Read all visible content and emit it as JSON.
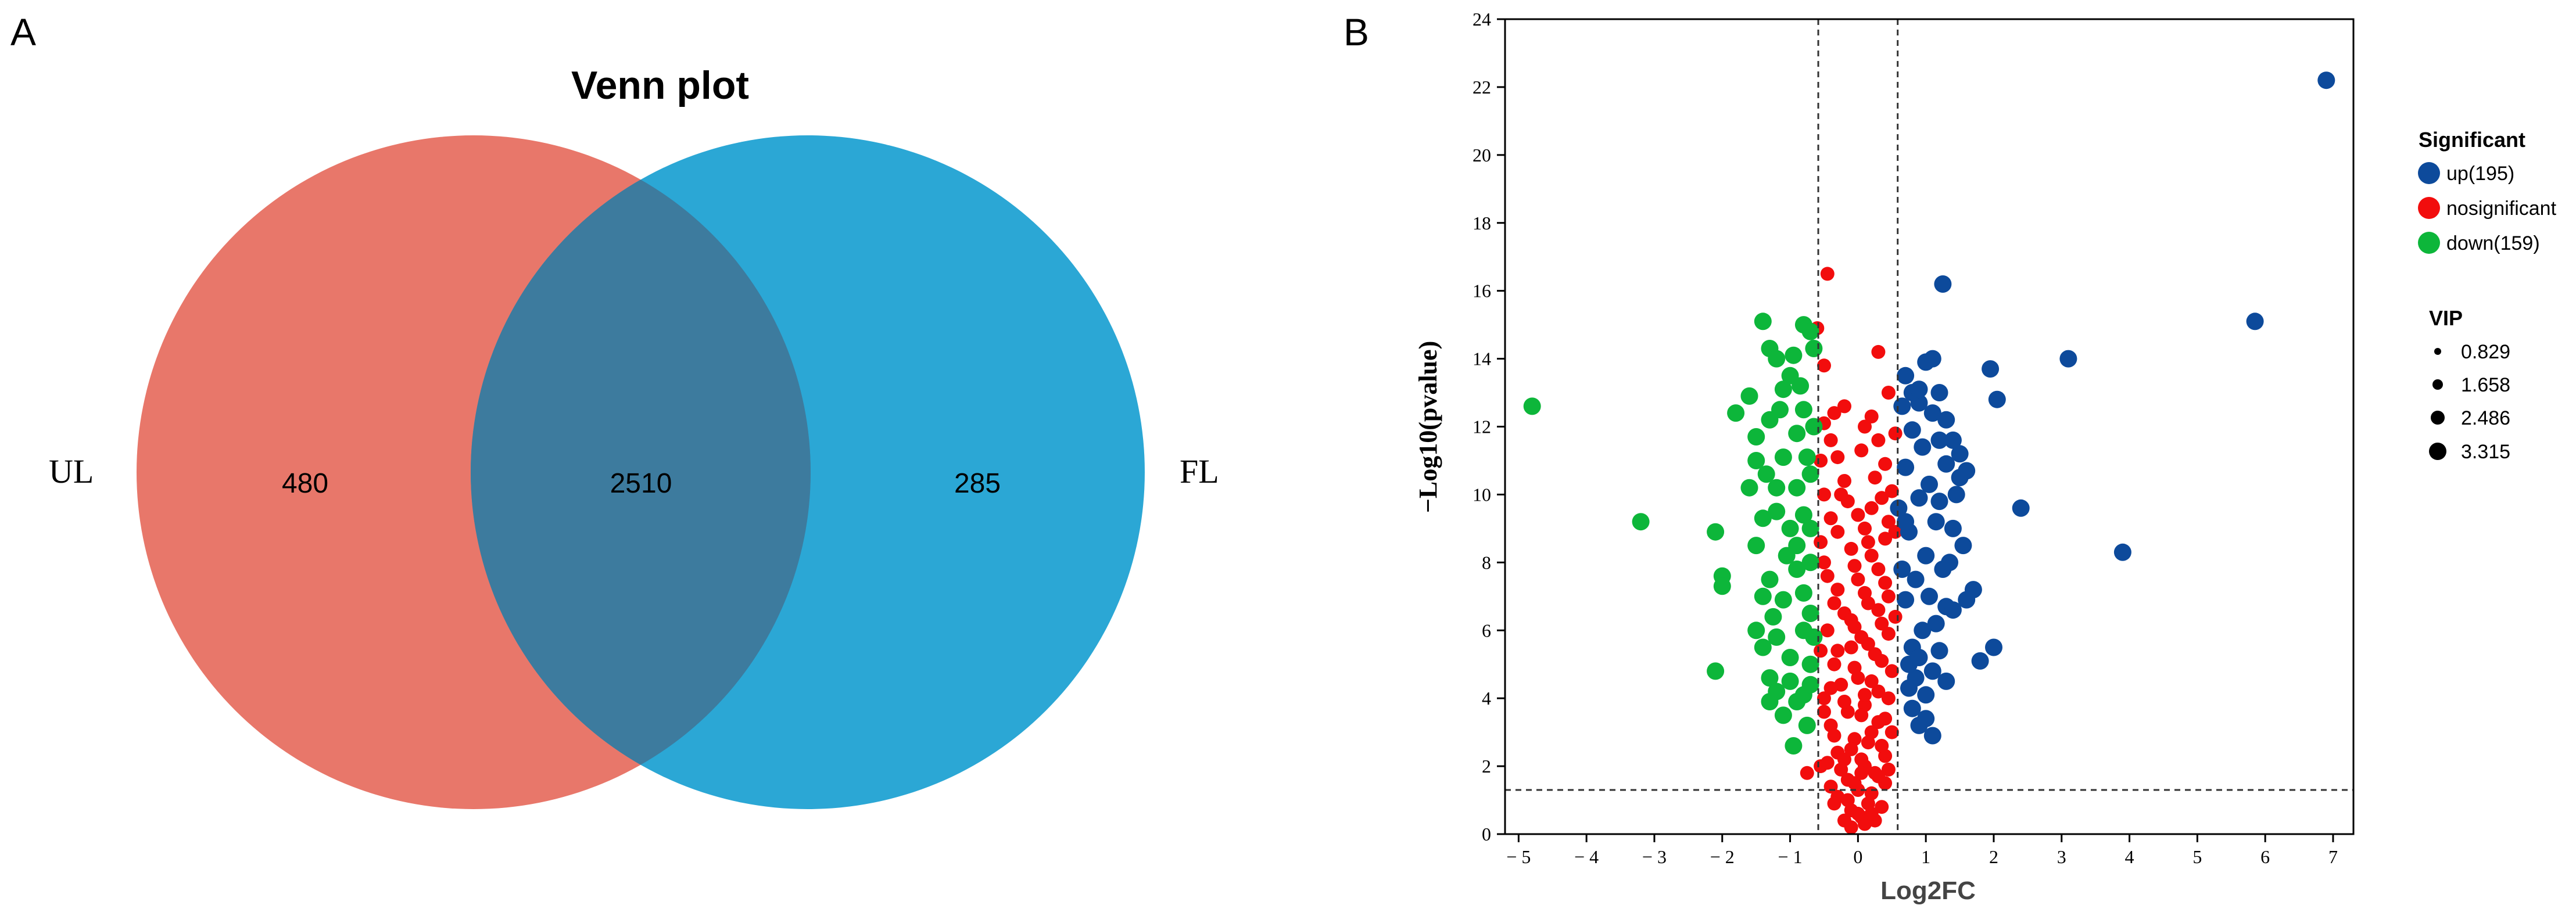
{
  "panels": {
    "a_label": "A",
    "b_label": "B"
  },
  "chart_data": [
    {
      "type": "venn",
      "title": "Venn plot",
      "sets": [
        {
          "name": "UL",
          "only": 480,
          "color": "#e8776a"
        },
        {
          "name": "FL",
          "only": 285,
          "color": "#0e9bcf"
        }
      ],
      "intersection": 2510,
      "labels": {
        "only_left": "480",
        "shared": "2510",
        "only_right": "285"
      },
      "intersection_color": "#3d7b9e"
    },
    {
      "type": "scatter",
      "subtype": "volcano",
      "xlabel": "Log2FC",
      "ylabel": "−Log10(pvalue)",
      "xlim": [
        -5.2,
        7.3
      ],
      "ylim": [
        0,
        24
      ],
      "xticks": [
        -5,
        -4,
        -3,
        -2,
        -1,
        0,
        1,
        2,
        3,
        4,
        5,
        6,
        7
      ],
      "xtick_labels": [
        "− 5",
        "− 4",
        "− 3",
        "− 2",
        "− 1",
        "0",
        "1",
        "2",
        "3",
        "4",
        "5",
        "6",
        "7"
      ],
      "yticks": [
        0,
        2,
        4,
        6,
        8,
        10,
        12,
        14,
        16,
        18,
        20,
        22,
        24
      ],
      "ytick_labels": [
        "0",
        "2",
        "4",
        "6",
        "8",
        "10",
        "12",
        "14",
        "16",
        "18",
        "20",
        "22",
        "24"
      ],
      "threshold_lines": {
        "x": [
          -0.585,
          0.585
        ],
        "y": 1.301
      },
      "legend": {
        "title": "Significant",
        "entries": [
          {
            "label": "up(195)",
            "color": "#0d4a9b"
          },
          {
            "label": "nosignificant",
            "color": "#f20d0d"
          },
          {
            "label": "down(159)",
            "color": "#0db63a"
          }
        ],
        "vip_title": "VIP",
        "vip_entries": [
          "0.829",
          "1.658",
          "2.486",
          "3.315"
        ]
      },
      "series": [
        {
          "name": "up",
          "count": 195,
          "color": "#0d4a9b",
          "points": [
            [
              6.9,
              22.2
            ],
            [
              5.85,
              15.1
            ],
            [
              3.1,
              14.0
            ],
            [
              3.9,
              8.3
            ],
            [
              2.4,
              9.6
            ],
            [
              1.95,
              13.7
            ],
            [
              2.05,
              12.8
            ],
            [
              1.25,
              16.2
            ],
            [
              1.0,
              13.9
            ],
            [
              1.1,
              14.0
            ],
            [
              1.2,
              13.0
            ],
            [
              0.9,
              12.7
            ],
            [
              1.3,
              12.2
            ],
            [
              1.4,
              11.6
            ],
            [
              1.5,
              11.2
            ],
            [
              1.2,
              11.6
            ],
            [
              1.1,
              12.4
            ],
            [
              1.3,
              10.9
            ],
            [
              1.5,
              10.5
            ],
            [
              1.6,
              10.7
            ],
            [
              1.45,
              10.0
            ],
            [
              1.7,
              7.2
            ],
            [
              1.6,
              6.9
            ],
            [
              1.3,
              6.7
            ],
            [
              1.4,
              6.6
            ],
            [
              1.8,
              5.1
            ],
            [
              2.0,
              5.5
            ],
            [
              1.2,
              5.4
            ],
            [
              1.3,
              4.5
            ],
            [
              1.0,
              4.1
            ],
            [
              0.9,
              3.2
            ],
            [
              1.1,
              2.9
            ],
            [
              1.0,
              3.4
            ],
            [
              0.85,
              4.6
            ],
            [
              0.8,
              5.5
            ],
            [
              0.75,
              8.9
            ],
            [
              0.9,
              9.9
            ],
            [
              1.0,
              8.2
            ],
            [
              0.95,
              6.0
            ],
            [
              1.15,
              9.2
            ],
            [
              1.25,
              7.8
            ],
            [
              0.7,
              10.8
            ],
            [
              0.8,
              11.9
            ],
            [
              0.65,
              12.6
            ],
            [
              0.7,
              9.2
            ],
            [
              0.85,
              7.5
            ],
            [
              0.7,
              6.9
            ],
            [
              0.75,
              5.0
            ],
            [
              1.05,
              10.3
            ],
            [
              1.15,
              6.2
            ],
            [
              1.35,
              8.0
            ],
            [
              0.95,
              11.4
            ],
            [
              0.8,
              13.0
            ],
            [
              0.7,
              13.5
            ],
            [
              0.9,
              13.1
            ],
            [
              0.65,
              7.8
            ],
            [
              0.6,
              9.6
            ],
            [
              1.05,
              7.0
            ],
            [
              1.4,
              9.0
            ],
            [
              1.2,
              9.8
            ],
            [
              0.75,
              4.3
            ],
            [
              0.9,
              5.2
            ],
            [
              0.8,
              3.7
            ],
            [
              1.55,
              8.5
            ],
            [
              1.1,
              4.8
            ]
          ]
        },
        {
          "name": "down",
          "count": 159,
          "color": "#0db63a",
          "points": [
            [
              -4.8,
              12.6
            ],
            [
              -3.2,
              9.2
            ],
            [
              -2.1,
              8.9
            ],
            [
              -2.0,
              7.6
            ],
            [
              -2.0,
              7.3
            ],
            [
              -2.1,
              4.8
            ],
            [
              -1.8,
              12.4
            ],
            [
              -1.6,
              12.9
            ],
            [
              -1.5,
              11.7
            ],
            [
              -1.4,
              15.1
            ],
            [
              -1.3,
              14.3
            ],
            [
              -1.2,
              14.0
            ],
            [
              -1.0,
              13.5
            ],
            [
              -0.8,
              15.0
            ],
            [
              -0.7,
              14.8
            ],
            [
              -0.65,
              14.3
            ],
            [
              -1.1,
              13.1
            ],
            [
              -1.3,
              12.2
            ],
            [
              -1.5,
              11.0
            ],
            [
              -1.6,
              10.2
            ],
            [
              -1.4,
              9.3
            ],
            [
              -1.5,
              8.5
            ],
            [
              -1.4,
              7.0
            ],
            [
              -1.5,
              6.0
            ],
            [
              -1.4,
              5.5
            ],
            [
              -1.3,
              4.6
            ],
            [
              -1.3,
              3.9
            ],
            [
              -1.1,
              3.5
            ],
            [
              -1.2,
              4.2
            ],
            [
              -1.0,
              4.5
            ],
            [
              -0.9,
              3.9
            ],
            [
              -0.8,
              4.1
            ],
            [
              -0.7,
              5.0
            ],
            [
              -0.7,
              6.5
            ],
            [
              -0.9,
              7.8
            ],
            [
              -1.0,
              9.0
            ],
            [
              -1.2,
              10.2
            ],
            [
              -1.1,
              11.1
            ],
            [
              -0.9,
              11.8
            ],
            [
              -0.8,
              12.5
            ],
            [
              -0.7,
              10.6
            ],
            [
              -0.8,
              9.4
            ],
            [
              -0.9,
              8.5
            ],
            [
              -1.1,
              6.9
            ],
            [
              -1.2,
              5.8
            ],
            [
              -0.7,
              8.0
            ],
            [
              -0.65,
              5.8
            ],
            [
              -0.75,
              3.2
            ],
            [
              -0.95,
              2.6
            ],
            [
              -1.3,
              7.5
            ],
            [
              -1.0,
              5.2
            ],
            [
              -0.75,
              11.1
            ],
            [
              -0.65,
              12.0
            ],
            [
              -1.2,
              9.5
            ],
            [
              -1.35,
              10.6
            ],
            [
              -0.9,
              10.2
            ],
            [
              -0.8,
              6.0
            ],
            [
              -1.05,
              8.2
            ],
            [
              -0.7,
              9.0
            ],
            [
              -0.85,
              13.2
            ],
            [
              -1.15,
              12.5
            ],
            [
              -0.95,
              14.1
            ],
            [
              -1.25,
              6.4
            ],
            [
              -0.8,
              7.1
            ],
            [
              -0.7,
              4.4
            ]
          ]
        },
        {
          "name": "nosignificant",
          "color": "#f20d0d",
          "points": [
            [
              -0.45,
              16.5
            ],
            [
              -0.6,
              14.9
            ],
            [
              0.3,
              14.2
            ],
            [
              -0.5,
              13.8
            ],
            [
              -0.5,
              12.1
            ],
            [
              0.1,
              12.0
            ],
            [
              0.3,
              11.6
            ],
            [
              -0.3,
              11.1
            ],
            [
              0.4,
              10.9
            ],
            [
              -0.2,
              10.4
            ],
            [
              -0.5,
              10.0
            ],
            [
              0.5,
              10.1
            ],
            [
              0.2,
              9.6
            ],
            [
              -0.4,
              9.3
            ],
            [
              0.1,
              9.0
            ],
            [
              0.4,
              8.7
            ],
            [
              -0.1,
              8.4
            ],
            [
              -0.5,
              8.0
            ],
            [
              0.3,
              7.8
            ],
            [
              0.0,
              7.5
            ],
            [
              -0.3,
              7.2
            ],
            [
              0.45,
              7.0
            ],
            [
              0.15,
              6.8
            ],
            [
              -0.2,
              6.5
            ],
            [
              0.35,
              6.2
            ],
            [
              -0.45,
              6.0
            ],
            [
              0.05,
              5.8
            ],
            [
              -0.1,
              5.5
            ],
            [
              0.25,
              5.3
            ],
            [
              -0.35,
              5.0
            ],
            [
              0.5,
              4.8
            ],
            [
              0.0,
              4.6
            ],
            [
              -0.25,
              4.4
            ],
            [
              0.3,
              4.2
            ],
            [
              -0.5,
              4.0
            ],
            [
              0.1,
              3.8
            ],
            [
              -0.15,
              3.6
            ],
            [
              0.4,
              3.4
            ],
            [
              -0.4,
              3.2
            ],
            [
              0.2,
              3.0
            ],
            [
              -0.05,
              2.8
            ],
            [
              0.35,
              2.6
            ],
            [
              -0.3,
              2.4
            ],
            [
              0.05,
              2.2
            ],
            [
              -0.55,
              2.0
            ],
            [
              0.25,
              1.8
            ],
            [
              -0.15,
              1.6
            ],
            [
              -0.75,
              1.8
            ],
            [
              0.4,
              1.5
            ],
            [
              0.0,
              1.3
            ],
            [
              -0.3,
              1.1
            ],
            [
              0.15,
              0.9
            ],
            [
              -0.1,
              0.7
            ],
            [
              0.05,
              0.5
            ],
            [
              -0.2,
              0.4
            ],
            [
              0.1,
              0.3
            ],
            [
              0.45,
              13.0
            ],
            [
              -0.2,
              12.6
            ],
            [
              0.2,
              12.3
            ],
            [
              -0.4,
              11.6
            ],
            [
              0.05,
              11.3
            ],
            [
              0.35,
              9.9
            ],
            [
              -0.15,
              9.8
            ],
            [
              0.45,
              9.2
            ],
            [
              -0.3,
              8.9
            ],
            [
              0.2,
              8.2
            ],
            [
              -0.05,
              7.9
            ],
            [
              -0.45,
              7.6
            ],
            [
              0.4,
              7.4
            ],
            [
              0.1,
              7.1
            ],
            [
              -0.35,
              6.8
            ],
            [
              0.3,
              6.6
            ],
            [
              -0.1,
              6.3
            ],
            [
              0.45,
              5.9
            ],
            [
              0.15,
              5.6
            ],
            [
              -0.3,
              5.4
            ],
            [
              0.35,
              5.1
            ],
            [
              -0.05,
              4.9
            ],
            [
              0.2,
              4.5
            ],
            [
              -0.4,
              4.3
            ],
            [
              0.45,
              4.0
            ],
            [
              -0.2,
              3.9
            ],
            [
              0.05,
              3.5
            ],
            [
              0.3,
              3.3
            ],
            [
              -0.35,
              2.9
            ],
            [
              0.15,
              2.7
            ],
            [
              -0.1,
              2.5
            ],
            [
              0.4,
              2.3
            ],
            [
              -0.45,
              2.1
            ],
            [
              0.1,
              2.0
            ],
            [
              -0.25,
              1.9
            ],
            [
              0.3,
              1.7
            ],
            [
              -0.05,
              1.5
            ],
            [
              0.2,
              1.2
            ],
            [
              -0.15,
              1.0
            ],
            [
              0.35,
              0.8
            ],
            [
              0.0,
              0.6
            ],
            [
              -0.35,
              0.9
            ],
            [
              0.25,
              0.4
            ],
            [
              -0.5,
              3.6
            ],
            [
              0.5,
              3.0
            ],
            [
              -0.55,
              5.4
            ],
            [
              0.55,
              6.4
            ],
            [
              -0.55,
              8.6
            ],
            [
              0.55,
              8.9
            ],
            [
              -0.55,
              11.0
            ],
            [
              0.55,
              11.8
            ],
            [
              -0.25,
              10.0
            ],
            [
              0.25,
              10.5
            ],
            [
              0.0,
              9.4
            ],
            [
              -0.35,
              12.4
            ],
            [
              0.15,
              8.6
            ],
            [
              -0.05,
              6.1
            ],
            [
              0.1,
              4.1
            ],
            [
              -0.2,
              2.2
            ],
            [
              0.05,
              1.8
            ],
            [
              -0.4,
              1.4
            ],
            [
              0.45,
              1.9
            ],
            [
              0.2,
              0.6
            ],
            [
              -0.1,
              0.2
            ]
          ]
        }
      ]
    }
  ]
}
